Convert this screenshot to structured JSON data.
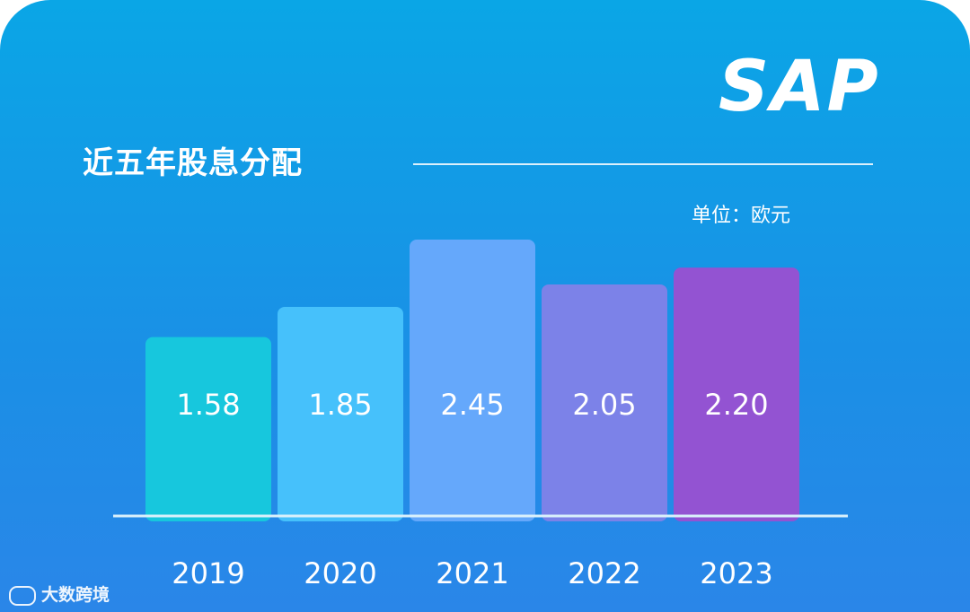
{
  "brand_logo": "SAP",
  "footer_brand": "大数跨境",
  "chart_data": {
    "type": "bar",
    "title": "近五年股息分配",
    "unit_label": "单位：欧元",
    "categories": [
      "2019",
      "2020",
      "2021",
      "2022",
      "2023"
    ],
    "values": [
      1.58,
      1.85,
      2.45,
      2.05,
      2.2
    ],
    "value_labels": [
      "1.58",
      "1.85",
      "2.45",
      "2.05",
      "2.20"
    ],
    "colors": [
      "#17c7dd",
      "#46c1fb",
      "#65a8fb",
      "#7c82e8",
      "#9353d2"
    ],
    "ylim": [
      0,
      2.45
    ],
    "grid": false,
    "legend": "none"
  }
}
